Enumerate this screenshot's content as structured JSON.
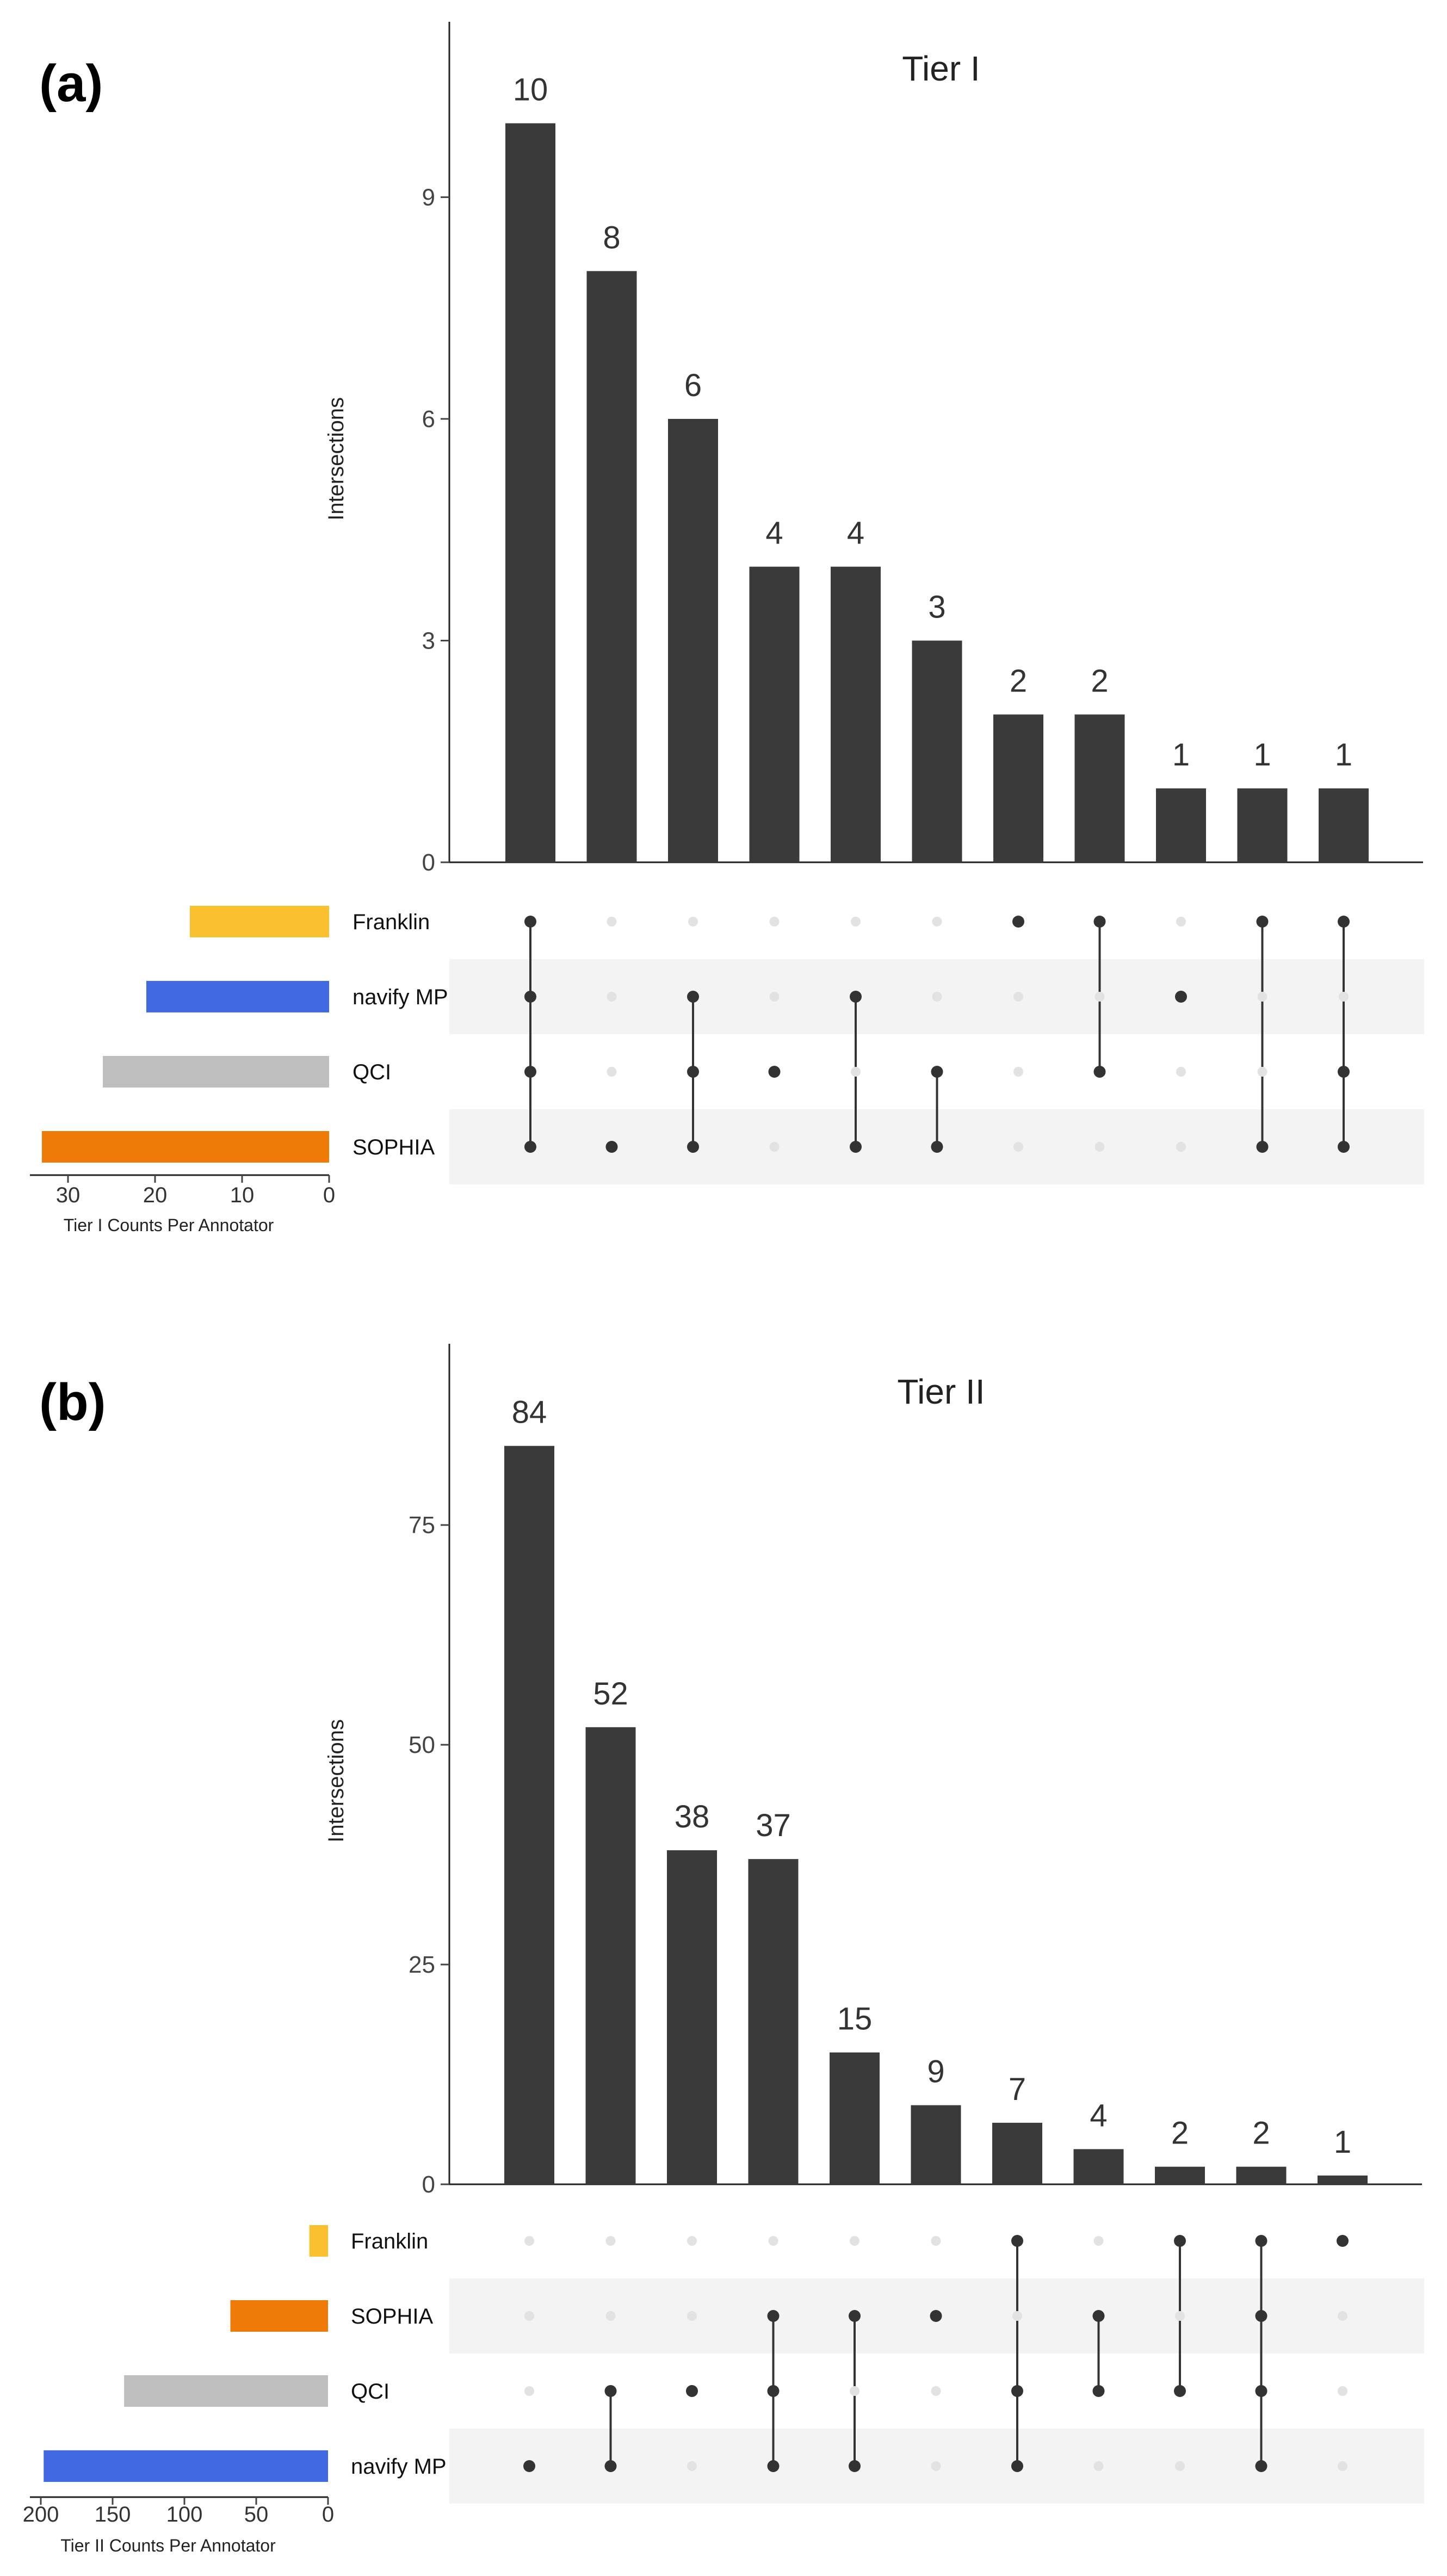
{
  "figure": {
    "panels": [
      {
        "label": "(a)",
        "chart_data": {
          "type": "bar",
          "title": "Tier I",
          "ylabel": "Intersections",
          "ylim": [
            0,
            11.3
          ],
          "yticks": [
            0,
            3,
            6,
            9
          ],
          "values": [
            10,
            8,
            6,
            4,
            4,
            3,
            2,
            2,
            1,
            1,
            1
          ],
          "sets": [
            "Franklin",
            "navify MP",
            "QCI",
            "SOPHIA"
          ],
          "set_colors": [
            "#FBC02D",
            "#4169E1",
            "#BEBEBE",
            "#EF7A08"
          ],
          "set_sizes": [
            16,
            21,
            26,
            33
          ],
          "set_size_xlim": [
            0,
            35
          ],
          "set_size_ticks": [
            0,
            10,
            20,
            30
          ],
          "set_size_xlabel": "Tier I Counts Per Annotator",
          "memberships": [
            [
              "Franklin",
              "navify MP",
              "QCI",
              "SOPHIA"
            ],
            [
              "SOPHIA"
            ],
            [
              "navify MP",
              "QCI",
              "SOPHIA"
            ],
            [
              "QCI"
            ],
            [
              "navify MP",
              "SOPHIA"
            ],
            [
              "QCI",
              "SOPHIA"
            ],
            [
              "Franklin"
            ],
            [
              "Franklin",
              "QCI"
            ],
            [
              "navify MP"
            ],
            [
              "Franklin",
              "SOPHIA"
            ],
            [
              "Franklin",
              "QCI",
              "SOPHIA"
            ]
          ]
        }
      },
      {
        "label": "(b)",
        "chart_data": {
          "type": "bar",
          "title": "Tier II",
          "ylabel": "Intersections",
          "ylim": [
            0,
            95
          ],
          "yticks": [
            0,
            25,
            50,
            75
          ],
          "values": [
            84,
            52,
            38,
            37,
            15,
            9,
            7,
            4,
            2,
            2,
            1
          ],
          "sets": [
            "Franklin",
            "SOPHIA",
            "QCI",
            "navify MP"
          ],
          "set_colors": [
            "#FBC02D",
            "#EF7A08",
            "#BEBEBE",
            "#4169E1"
          ],
          "set_sizes": [
            13,
            68,
            142,
            198
          ],
          "set_size_xlim": [
            0,
            205
          ],
          "set_size_ticks": [
            0,
            50,
            100,
            150,
            200
          ],
          "set_size_xlabel": "Tier II Counts Per Annotator",
          "memberships": [
            [
              "navify MP"
            ],
            [
              "QCI",
              "navify MP"
            ],
            [
              "QCI"
            ],
            [
              "SOPHIA",
              "QCI",
              "navify MP"
            ],
            [
              "SOPHIA",
              "navify MP"
            ],
            [
              "SOPHIA"
            ],
            [
              "Franklin",
              "QCI",
              "navify MP"
            ],
            [
              "SOPHIA",
              "QCI"
            ],
            [
              "Franklin",
              "QCI"
            ],
            [
              "Franklin",
              "SOPHIA",
              "QCI",
              "navify MP"
            ],
            [
              "Franklin"
            ]
          ]
        }
      }
    ]
  }
}
